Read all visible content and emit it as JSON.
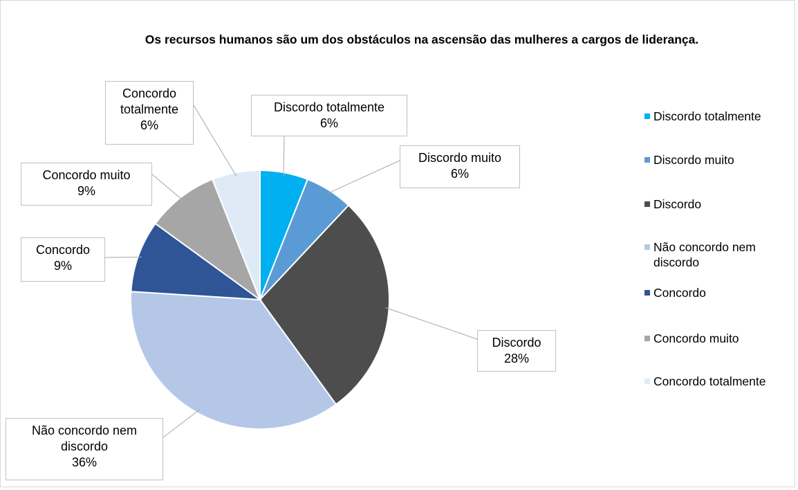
{
  "chart_data": {
    "type": "pie",
    "title": "Os recursos humanos são um dos obstáculos na ascensão das mulheres a cargos de liderança.",
    "categories": [
      "Discordo totalmente",
      "Discordo muito",
      "Discordo",
      "Não concordo nem discordo",
      "Concordo",
      "Concordo muito",
      "Concordo totalmente"
    ],
    "values": [
      6,
      6,
      28,
      36,
      9,
      9,
      6
    ],
    "value_labels": [
      "6%",
      "6%",
      "28%",
      "36%",
      "9%",
      "9%",
      "6%"
    ],
    "colors": [
      "#00b0f0",
      "#5b9bd5",
      "#4d4d4d",
      "#b4c7e7",
      "#2f5597",
      "#a6a6a6",
      "#deebf7"
    ],
    "legend": "right"
  }
}
